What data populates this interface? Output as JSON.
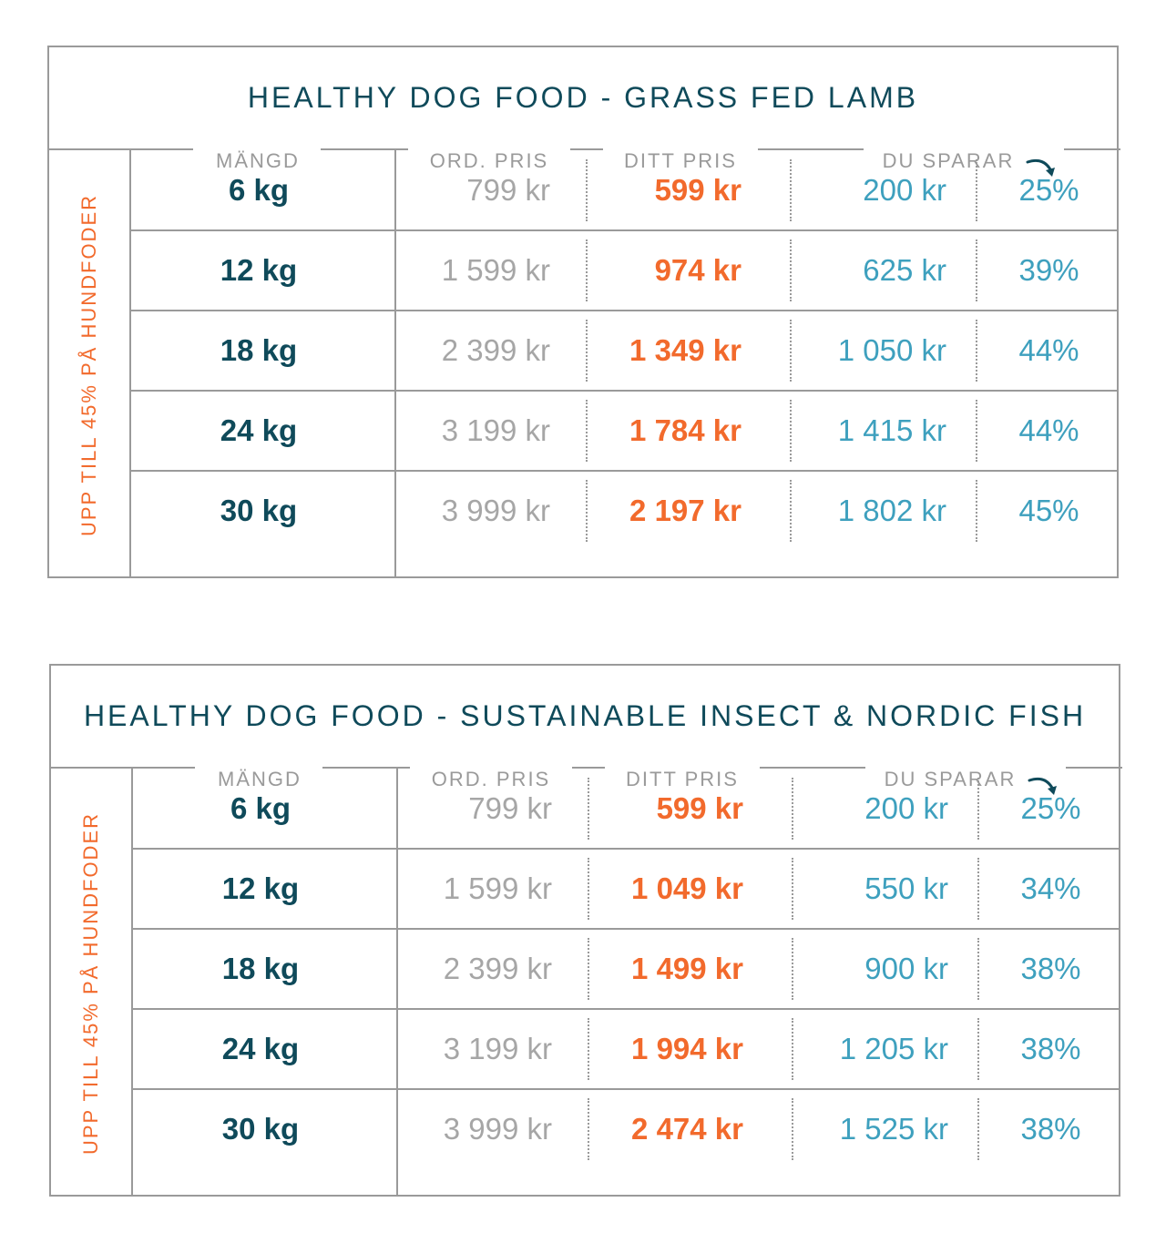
{
  "side_label": "UPP TILL 45% PÅ HUNDFODER",
  "headers": {
    "mangd": "MÄNGD",
    "ord_pris": "ORD. PRIS",
    "ditt_pris": "DITT PRIS",
    "du_sparar": "DU SPARAR"
  },
  "tables": [
    {
      "title": "HEALTHY DOG FOOD - GRASS FED LAMB",
      "rows": [
        {
          "qty": "6 kg",
          "ord": "799 kr",
          "ditt": "599 kr",
          "save": "200 kr",
          "pct": "25%"
        },
        {
          "qty": "12 kg",
          "ord": "1 599 kr",
          "ditt": "974 kr",
          "save": "625 kr",
          "pct": "39%"
        },
        {
          "qty": "18 kg",
          "ord": "2 399 kr",
          "ditt": "1 349 kr",
          "save": "1 050 kr",
          "pct": "44%"
        },
        {
          "qty": "24 kg",
          "ord": "3 199 kr",
          "ditt": "1 784 kr",
          "save": "1 415 kr",
          "pct": "44%"
        },
        {
          "qty": "30 kg",
          "ord": "3 999 kr",
          "ditt": "2 197 kr",
          "save": "1 802 kr",
          "pct": "45%"
        }
      ]
    },
    {
      "title": "HEALTHY DOG FOOD - SUSTAINABLE INSECT & NORDIC FISH",
      "rows": [
        {
          "qty": "6 kg",
          "ord": "799 kr",
          "ditt": "599 kr",
          "save": "200 kr",
          "pct": "25%"
        },
        {
          "qty": "12 kg",
          "ord": "1 599 kr",
          "ditt": "1 049 kr",
          "save": "550 kr",
          "pct": "34%"
        },
        {
          "qty": "18 kg",
          "ord": "2 399 kr",
          "ditt": "1 499 kr",
          "save": "900 kr",
          "pct": "38%"
        },
        {
          "qty": "24 kg",
          "ord": "3 199 kr",
          "ditt": "1 994 kr",
          "save": "1 205 kr",
          "pct": "38%"
        },
        {
          "qty": "30 kg",
          "ord": "3 999 kr",
          "ditt": "2 474 kr",
          "save": "1 525 kr",
          "pct": "38%"
        }
      ]
    }
  ],
  "colors": {
    "title": "#0f4a5a",
    "accent_orange": "#f26a2c",
    "accent_blue": "#3ea0be",
    "muted": "#a6a6a6",
    "border": "#9a9a9a"
  },
  "icons": {
    "arrow": "curved-arrow-down-right-icon"
  }
}
